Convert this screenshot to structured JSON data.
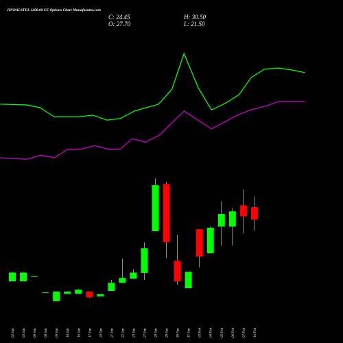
{
  "chart_data": {
    "type": "candlestick",
    "title": "JINDALSTEL 1200.00 CE Options Chart Munafasutra.com",
    "ohlc_labels": [
      "C: 24.45",
      "H: 30.50",
      "O: 27.70",
      "L: 21.50"
    ],
    "categories": [
      "02 Jan",
      "03 Jan",
      "06 Jan",
      "08 Jan",
      "09 Jan",
      "14 Jan",
      "16 Jan",
      "17 Jan",
      "20 Jan",
      "21 Jan",
      "22 Jan",
      "23 Jan",
      "27 Jan",
      "28 Jan",
      "29 Jan",
      "30 Jan",
      "31 Jan",
      "03 Feb",
      "04 Feb",
      "05 Feb",
      "06 Feb",
      "07 Feb",
      "10 Feb"
    ],
    "open": [
      8.2,
      8.2,
      9.5,
      5.3,
      3.0,
      4.9,
      4.9,
      5.5,
      4.2,
      5.7,
      7.8,
      8.9,
      10.4,
      21.4,
      33.8,
      13.6,
      6.4,
      21.9,
      15.6,
      22.6,
      22.6,
      28.2,
      27.7
    ],
    "high": [
      10.7,
      10.7,
      9.6,
      5.4,
      5.5,
      5.5,
      6.2,
      5.5,
      4.8,
      8.6,
      14.2,
      11.4,
      18.5,
      35.3,
      34.4,
      20.5,
      10.7,
      21.9,
      22.6,
      29.3,
      27.5,
      32.4,
      30.5
    ],
    "low": [
      8.2,
      8.2,
      9.4,
      5.2,
      3.0,
      4.9,
      4.9,
      3.8,
      4.2,
      5.7,
      7.8,
      8.9,
      8.6,
      21.4,
      14.3,
      7.3,
      6.4,
      11.8,
      15.6,
      17.6,
      17.6,
      20.8,
      21.5
    ],
    "close": [
      10.5,
      10.5,
      9.5,
      5.3,
      5.5,
      5.5,
      6.0,
      4.0,
      4.8,
      7.8,
      9.1,
      10.5,
      16.9,
      33.5,
      18.5,
      8.2,
      10.7,
      14.7,
      22.3,
      25.9,
      26.6,
      25.3,
      24.45
    ],
    "up_color": "#00ff00",
    "down_color": "#ff0000",
    "wick_color": "#cccccc",
    "series": [
      {
        "type": "line",
        "color": "#00ff00",
        "x": [
          -1.1,
          1.3,
          2.5,
          3.8,
          6.1,
          7.3,
          8.6,
          9.8,
          11.1,
          13.3,
          14.5,
          15.6,
          16.9,
          18.1,
          19.4,
          20.6,
          21.7,
          22.9,
          24.2,
          25.4,
          26.6
        ],
        "values": [
          54.8,
          54.6,
          53.9,
          51.5,
          51.5,
          51.9,
          50.6,
          51.0,
          53.0,
          54.8,
          58.7,
          68.1,
          59.1,
          53.3,
          55.1,
          57.3,
          61.8,
          64.0,
          64.3,
          63.8,
          63.1
        ]
      },
      {
        "type": "line",
        "color": "#cc00cc",
        "x": [
          -1.1,
          1.3,
          2.6,
          3.8,
          5.0,
          6.3,
          7.5,
          8.8,
          9.8,
          10.9,
          12.1,
          13.4,
          15.6,
          18.1,
          20.6,
          21.7,
          22.9,
          24.2,
          26.6
        ],
        "values": [
          40.7,
          40.3,
          41.4,
          40.7,
          42.9,
          43.0,
          43.9,
          42.9,
          43.0,
          45.7,
          44.8,
          46.7,
          53.0,
          48.3,
          52.1,
          53.3,
          54.2,
          55.5,
          55.5
        ]
      }
    ],
    "xlim": [
      -1.1,
      26.6
    ],
    "ylim": [
      -0.8,
      82.2
    ]
  }
}
